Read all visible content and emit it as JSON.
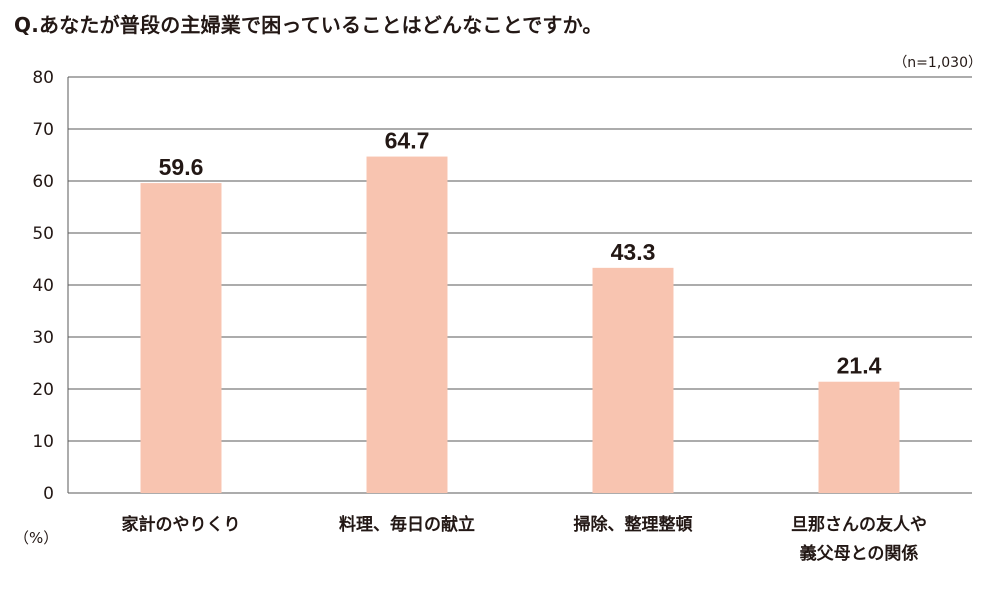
{
  "title": "Q.あなたが普段の主婦業で困っていることはどんなことですか。",
  "sample_note": "（n=1,030）",
  "unit_label": "（%）",
  "colors": {
    "bar": "#f8c4b0",
    "grid": "#5a5a5a",
    "text": "#231815"
  },
  "chart_data": {
    "type": "bar",
    "title": "Q.あなたが普段の主婦業で困っていることはどんなことですか。",
    "xlabel": "",
    "ylabel": "（%）",
    "ylim": [
      0,
      80
    ],
    "yticks": [
      0,
      10,
      20,
      30,
      40,
      50,
      60,
      70,
      80
    ],
    "grid": true,
    "categories": [
      [
        "家計のやりくり"
      ],
      [
        "料理、毎日の献立"
      ],
      [
        "掃除、整理整頓"
      ],
      [
        "旦那さんの友人や",
        "義父母との関係"
      ]
    ],
    "values": [
      59.6,
      64.7,
      43.3,
      21.4
    ],
    "data_labels": [
      "59.6",
      "64.7",
      "43.3",
      "21.4"
    ]
  }
}
